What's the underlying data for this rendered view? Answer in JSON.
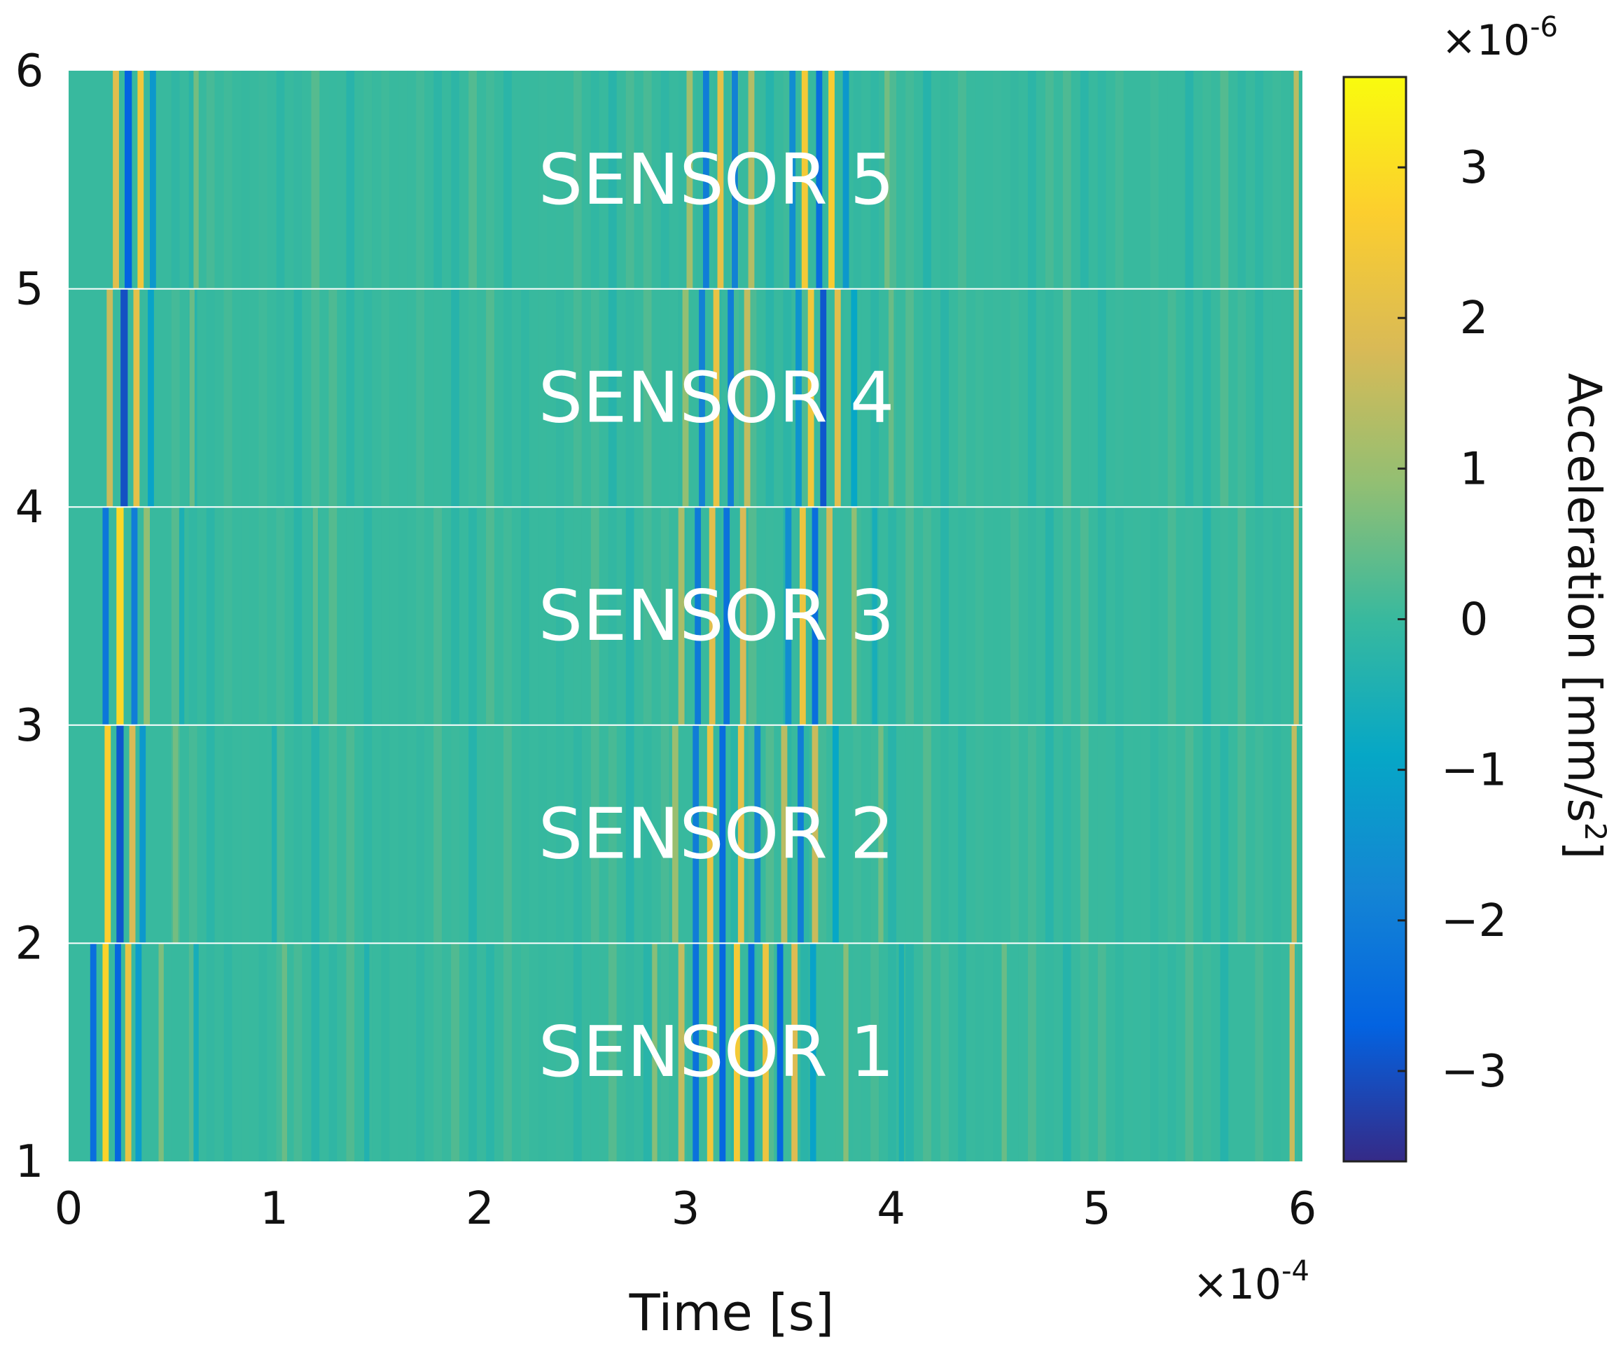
{
  "chart_data": {
    "type": "heatmap",
    "xlabel": "Time [s]",
    "x_multiplier": "×10",
    "x_multiplier_exp": "-4",
    "xlim": [
      0,
      6
    ],
    "x_ticks": [
      "0",
      "1",
      "2",
      "3",
      "4",
      "5",
      "6"
    ],
    "ylim": [
      1,
      6
    ],
    "y_ticks": [
      "1",
      "2",
      "3",
      "4",
      "5",
      "6"
    ],
    "colorbar": {
      "label": "Acceleration [mm/s",
      "label_sup": "2",
      "label_end": "]",
      "multiplier": "×10",
      "multiplier_exp": "-6",
      "range": [
        -3.6,
        3.6
      ],
      "ticks": [
        "3",
        "2",
        "1",
        "0",
        "−1",
        "−2",
        "−3"
      ],
      "colormap": "parula",
      "colors": [
        "#352a87",
        "#0363e1",
        "#1485d4",
        "#06a7c6",
        "#38b99e",
        "#92bf73",
        "#d9ba56",
        "#fcce2e",
        "#f9fb0e"
      ]
    },
    "rows": [
      {
        "label": "SENSOR 1",
        "y_range": [
          1,
          2
        ],
        "bands": [
          {
            "t": 0.12,
            "a": -2.4,
            "w": 0.03
          },
          {
            "t": 0.18,
            "a": 2.8,
            "w": 0.03
          },
          {
            "t": 0.24,
            "a": -2.6,
            "w": 0.03
          },
          {
            "t": 0.29,
            "a": 2.2,
            "w": 0.03
          },
          {
            "t": 0.34,
            "a": -1.2,
            "w": 0.03
          },
          {
            "t": 0.45,
            "a": 0.7,
            "w": 0.025
          },
          {
            "t": 0.62,
            "a": -0.6,
            "w": 0.025
          },
          {
            "t": 1.05,
            "a": 0.5,
            "w": 0.025
          },
          {
            "t": 1.45,
            "a": -0.4,
            "w": 0.025
          },
          {
            "t": 2.85,
            "a": 0.8,
            "w": 0.025
          },
          {
            "t": 2.98,
            "a": 1.5,
            "w": 0.03
          },
          {
            "t": 3.05,
            "a": -2.3,
            "w": 0.03
          },
          {
            "t": 3.12,
            "a": 2.4,
            "w": 0.03
          },
          {
            "t": 3.18,
            "a": -2.6,
            "w": 0.03
          },
          {
            "t": 3.25,
            "a": 2.5,
            "w": 0.03
          },
          {
            "t": 3.32,
            "a": -2.4,
            "w": 0.03
          },
          {
            "t": 3.39,
            "a": 2.3,
            "w": 0.03
          },
          {
            "t": 3.46,
            "a": -2.6,
            "w": 0.03
          },
          {
            "t": 3.53,
            "a": 1.9,
            "w": 0.03
          },
          {
            "t": 3.62,
            "a": -1.0,
            "w": 0.03
          },
          {
            "t": 3.78,
            "a": 0.8,
            "w": 0.025
          },
          {
            "t": 4.05,
            "a": -0.5,
            "w": 0.025
          },
          {
            "t": 4.55,
            "a": 0.5,
            "w": 0.025
          },
          {
            "t": 5.95,
            "a": 1.6,
            "w": 0.025
          }
        ]
      },
      {
        "label": "SENSOR 2",
        "y_range": [
          2,
          3
        ],
        "bands": [
          {
            "t": 0.19,
            "a": 2.7,
            "w": 0.03
          },
          {
            "t": 0.25,
            "a": -2.9,
            "w": 0.035
          },
          {
            "t": 0.31,
            "a": 1.8,
            "w": 0.03
          },
          {
            "t": 0.36,
            "a": -1.3,
            "w": 0.03
          },
          {
            "t": 0.52,
            "a": 0.6,
            "w": 0.025
          },
          {
            "t": 1.0,
            "a": -0.4,
            "w": 0.025
          },
          {
            "t": 2.95,
            "a": 1.0,
            "w": 0.03
          },
          {
            "t": 3.05,
            "a": -2.0,
            "w": 0.03
          },
          {
            "t": 3.12,
            "a": 2.2,
            "w": 0.03
          },
          {
            "t": 3.18,
            "a": -2.5,
            "w": 0.03
          },
          {
            "t": 3.27,
            "a": 2.1,
            "w": 0.03
          },
          {
            "t": 3.35,
            "a": -1.8,
            "w": 0.03
          },
          {
            "t": 3.48,
            "a": 1.4,
            "w": 0.03
          },
          {
            "t": 3.56,
            "a": -2.0,
            "w": 0.03
          },
          {
            "t": 3.63,
            "a": 1.6,
            "w": 0.03
          },
          {
            "t": 3.73,
            "a": -0.9,
            "w": 0.03
          },
          {
            "t": 3.95,
            "a": 0.6,
            "w": 0.025
          },
          {
            "t": 5.96,
            "a": 1.5,
            "w": 0.025
          }
        ]
      },
      {
        "label": "SENSOR 3",
        "y_range": [
          3,
          4
        ],
        "bands": [
          {
            "t": 0.18,
            "a": -2.2,
            "w": 0.03
          },
          {
            "t": 0.25,
            "a": 2.9,
            "w": 0.035
          },
          {
            "t": 0.32,
            "a": -2.0,
            "w": 0.03
          },
          {
            "t": 0.38,
            "a": 0.9,
            "w": 0.03
          },
          {
            "t": 0.55,
            "a": -0.5,
            "w": 0.025
          },
          {
            "t": 1.2,
            "a": 0.4,
            "w": 0.025
          },
          {
            "t": 2.98,
            "a": 1.2,
            "w": 0.03
          },
          {
            "t": 3.06,
            "a": -2.1,
            "w": 0.03
          },
          {
            "t": 3.13,
            "a": 2.0,
            "w": 0.03
          },
          {
            "t": 3.2,
            "a": -2.3,
            "w": 0.03
          },
          {
            "t": 3.28,
            "a": 1.8,
            "w": 0.03
          },
          {
            "t": 3.5,
            "a": -1.6,
            "w": 0.03
          },
          {
            "t": 3.57,
            "a": 2.3,
            "w": 0.03
          },
          {
            "t": 3.63,
            "a": -2.4,
            "w": 0.03
          },
          {
            "t": 3.7,
            "a": 1.7,
            "w": 0.03
          },
          {
            "t": 3.82,
            "a": 0.9,
            "w": 0.025
          },
          {
            "t": 3.92,
            "a": -0.6,
            "w": 0.025
          },
          {
            "t": 5.97,
            "a": 1.4,
            "w": 0.025
          }
        ]
      },
      {
        "label": "SENSOR 4",
        "y_range": [
          4,
          5
        ],
        "bands": [
          {
            "t": 0.2,
            "a": 1.6,
            "w": 0.03
          },
          {
            "t": 0.27,
            "a": -3.0,
            "w": 0.035
          },
          {
            "t": 0.33,
            "a": 2.1,
            "w": 0.03
          },
          {
            "t": 0.4,
            "a": -1.0,
            "w": 0.03
          },
          {
            "t": 0.6,
            "a": 0.5,
            "w": 0.025
          },
          {
            "t": 3.0,
            "a": 0.9,
            "w": 0.03
          },
          {
            "t": 3.08,
            "a": -1.9,
            "w": 0.03
          },
          {
            "t": 3.15,
            "a": 2.2,
            "w": 0.03
          },
          {
            "t": 3.22,
            "a": -2.0,
            "w": 0.03
          },
          {
            "t": 3.3,
            "a": 1.5,
            "w": 0.03
          },
          {
            "t": 3.55,
            "a": -1.4,
            "w": 0.03
          },
          {
            "t": 3.61,
            "a": 2.4,
            "w": 0.03
          },
          {
            "t": 3.67,
            "a": -2.9,
            "w": 0.03
          },
          {
            "t": 3.74,
            "a": 2.0,
            "w": 0.03
          },
          {
            "t": 3.82,
            "a": -0.9,
            "w": 0.03
          },
          {
            "t": 4.0,
            "a": 0.5,
            "w": 0.025
          },
          {
            "t": 5.97,
            "a": 1.4,
            "w": 0.025
          }
        ]
      },
      {
        "label": "SENSOR 5",
        "y_range": [
          5,
          6
        ],
        "bands": [
          {
            "t": 0.23,
            "a": 2.0,
            "w": 0.03
          },
          {
            "t": 0.29,
            "a": -2.7,
            "w": 0.035
          },
          {
            "t": 0.35,
            "a": 2.4,
            "w": 0.03
          },
          {
            "t": 0.41,
            "a": -1.3,
            "w": 0.03
          },
          {
            "t": 0.62,
            "a": 0.6,
            "w": 0.025
          },
          {
            "t": 3.02,
            "a": 1.1,
            "w": 0.03
          },
          {
            "t": 3.1,
            "a": -2.0,
            "w": 0.03
          },
          {
            "t": 3.17,
            "a": 2.1,
            "w": 0.03
          },
          {
            "t": 3.24,
            "a": -1.9,
            "w": 0.03
          },
          {
            "t": 3.32,
            "a": 1.3,
            "w": 0.03
          },
          {
            "t": 3.52,
            "a": -1.6,
            "w": 0.03
          },
          {
            "t": 3.58,
            "a": 2.5,
            "w": 0.03
          },
          {
            "t": 3.65,
            "a": -2.4,
            "w": 0.03
          },
          {
            "t": 3.71,
            "a": 2.6,
            "w": 0.03
          },
          {
            "t": 3.78,
            "a": -1.3,
            "w": 0.03
          },
          {
            "t": 3.98,
            "a": 0.6,
            "w": 0.025
          },
          {
            "t": 5.97,
            "a": 1.4,
            "w": 0.025
          }
        ]
      }
    ]
  }
}
